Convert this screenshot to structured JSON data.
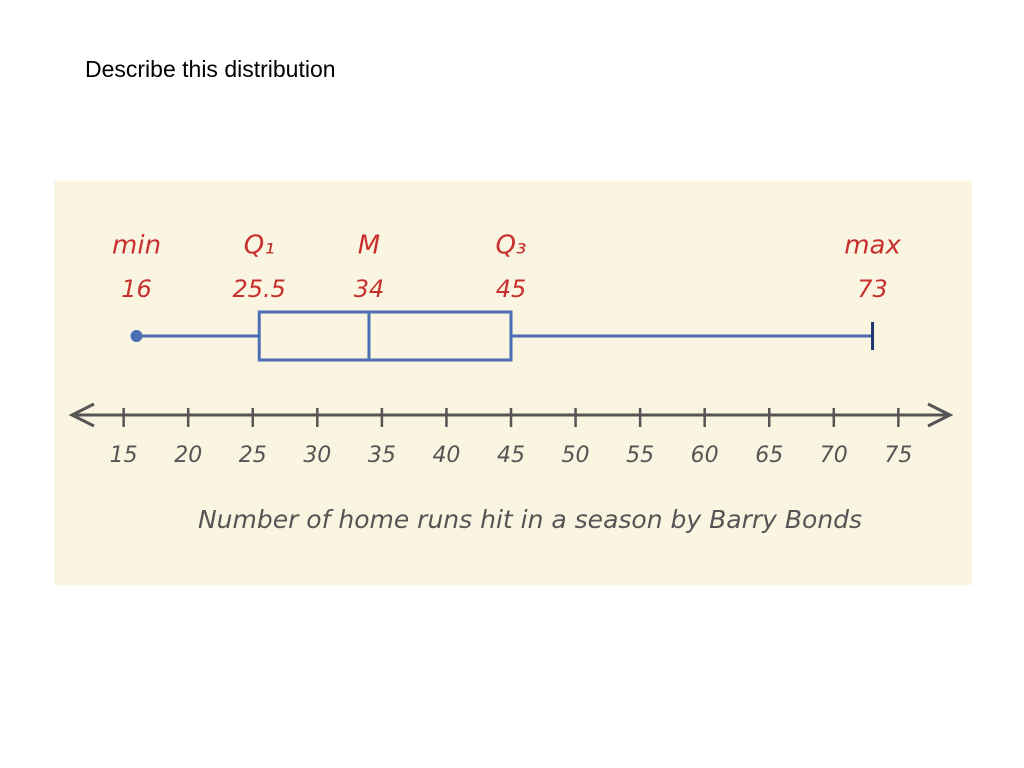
{
  "heading": "Describe this distribution",
  "chart_data": {
    "type": "box",
    "xlabel": "Number of home runs hit in a season by Barry Bonds",
    "stat_names": [
      "min",
      "Q₁",
      "M",
      "Q₃",
      "max"
    ],
    "values": [
      16,
      25.5,
      34,
      45,
      73
    ],
    "color": "#4a6fb5",
    "label_color": "#c8302f",
    "xlim": [
      11,
      79
    ],
    "xticks": [
      15,
      20,
      25,
      30,
      35,
      40,
      45,
      50,
      55,
      60,
      65,
      70,
      75
    ]
  }
}
